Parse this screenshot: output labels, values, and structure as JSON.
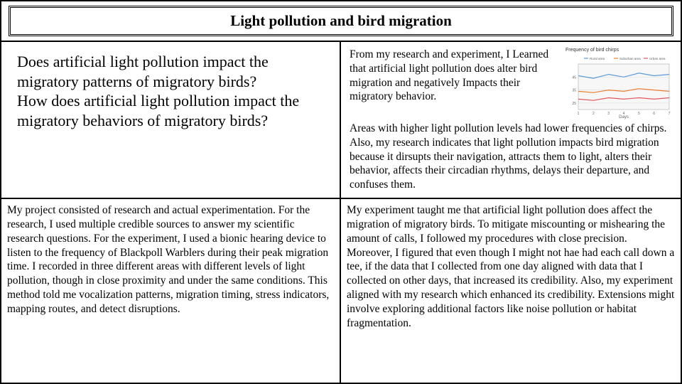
{
  "title": "Light pollution and bird migration",
  "questions": "Does artificial light pollution impact the migratory patterns of migratory birds?\nHow does artificial light pollution impact the migratory behaviors of migratory birds?",
  "findings_top": "From my research and experiment, I Learned that artificial light pollution does alter bird migration and negatively Impacts their migratory behavior.",
  "findings_rest": "Areas with higher light pollution levels had lower frequencies of chirps. Also, my research indicates that light pollution impacts bird migration because it dirsupts their navigation, attracts them to light, alters their behavior, affects their circadian rhythms, delays their departure, and confuses them.",
  "methods": "My project consisted of research and actual experimentation. For the research, I used multiple credible sources to answer my scientific research questions. For the experiment, I used a bionic hearing device to listen to the frequency of Blackpoll Warblers during their peak migration time. I recorded in three different areas with different levels of light pollution, though in close proximity and under the same conditions. This method told me  vocalization patterns, migration timing, stress indicators, mapping routes, and detect disruptions.",
  "conclusion": "My experiment taught me that artificial light pollution does affect the migration of migratory birds. To mitigate miscounting or mishearing the amount of calls, I followed my procedures with close precision. Moreover, I figured that even though I might not hae had each call down a tee, if the data that I collected from one day aligned with data that I collected on other days, that increased its credibility. Also, my experiment aligned with my research which enhanced  its credibility. Extensions might involve exploring additional factors like noise pollution or habitat fragmentation.",
  "chart": {
    "type": "line",
    "title": "Frequency of bird chirps",
    "legend": [
      "Urban area",
      "Suburban area",
      "Rural area"
    ],
    "x": [
      1,
      2,
      3,
      4,
      5,
      6,
      7
    ],
    "series": [
      {
        "name": "Rural area",
        "color": "#5b9bd5",
        "values": [
          46,
          44,
          47,
          45,
          48,
          46,
          47
        ]
      },
      {
        "name": "Suburban area",
        "color": "#ed7d31",
        "values": [
          34,
          33,
          35,
          34,
          36,
          35,
          34
        ]
      },
      {
        "name": "Urban area",
        "color": "#e15759",
        "values": [
          28,
          27,
          29,
          28,
          29,
          28,
          29
        ]
      }
    ],
    "ylim": [
      20,
      55
    ],
    "xlabel": "Days",
    "plot_bg": "#f7f7f7",
    "grid_color": "#dddddd",
    "axis_color": "#999999",
    "label_color": "#666666",
    "label_fontsize": 6,
    "line_width": 1.2
  }
}
